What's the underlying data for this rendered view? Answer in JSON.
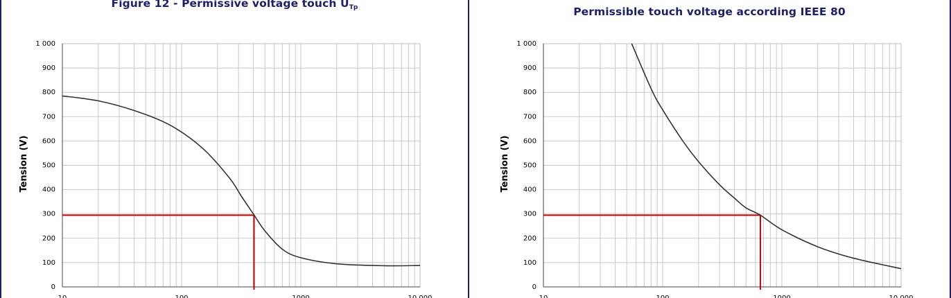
{
  "panels": [
    {
      "title": "Figure 12 - Permissive voltage touch U",
      "title_sub": "Tp"
    },
    {
      "title": "Permissible touch voltage according IEEE 80",
      "title_sub": ""
    }
  ],
  "chart_data": [
    {
      "type": "line",
      "title": "Figure 12 - Permissive voltage touch UTp",
      "xlabel": "",
      "ylabel": "Tension (V)",
      "xscale": "log",
      "xlim": [
        10,
        10000
      ],
      "ylim": [
        0,
        1000
      ],
      "x_tick_labels": [
        "10",
        "100",
        "1000",
        "10 000"
      ],
      "y_tick_labels": [
        "0",
        "100",
        "200",
        "300",
        "400",
        "500",
        "600",
        "700",
        "800",
        "900",
        "1 000"
      ],
      "grid": true,
      "colors": {
        "curve": "#333333",
        "marker": "#cc0000",
        "grid": "#c8c8c8"
      },
      "series": [
        {
          "x": [
            10,
            20,
            40,
            80,
            150,
            250,
            320,
            400,
            500,
            700,
            1000,
            2000,
            5000,
            10000
          ],
          "values": [
            785,
            765,
            725,
            665,
            570,
            450,
            370,
            300,
            230,
            155,
            120,
            95,
            87,
            88
          ]
        }
      ],
      "annotations": [
        {
          "type": "reference",
          "x": 405,
          "y": 295
        }
      ]
    },
    {
      "type": "line",
      "title": "Permissible touch voltage according IEEE 80",
      "xlabel": "",
      "ylabel": "Tension (V)",
      "xscale": "log",
      "xlim": [
        10,
        10000
      ],
      "ylim": [
        0,
        1000
      ],
      "x_tick_labels": [
        "10",
        "100",
        "1000",
        "10 000"
      ],
      "y_tick_labels": [
        "0",
        "100",
        "200",
        "300",
        "400",
        "500",
        "600",
        "700",
        "800",
        "900",
        "1 000"
      ],
      "grid": true,
      "colors": {
        "curve": "#333333",
        "marker": "#cc0000",
        "grid": "#c8c8c8"
      },
      "series": [
        {
          "x": [
            55,
            80,
            100,
            150,
            200,
            300,
            400,
            500,
            660,
            1000,
            2000,
            4000,
            10000
          ],
          "values": [
            1000,
            815,
            728,
            595,
            515,
            420,
            365,
            325,
            295,
            235,
            165,
            118,
            75
          ]
        }
      ],
      "annotations": [
        {
          "type": "reference",
          "x": 660,
          "y": 295
        }
      ]
    }
  ]
}
